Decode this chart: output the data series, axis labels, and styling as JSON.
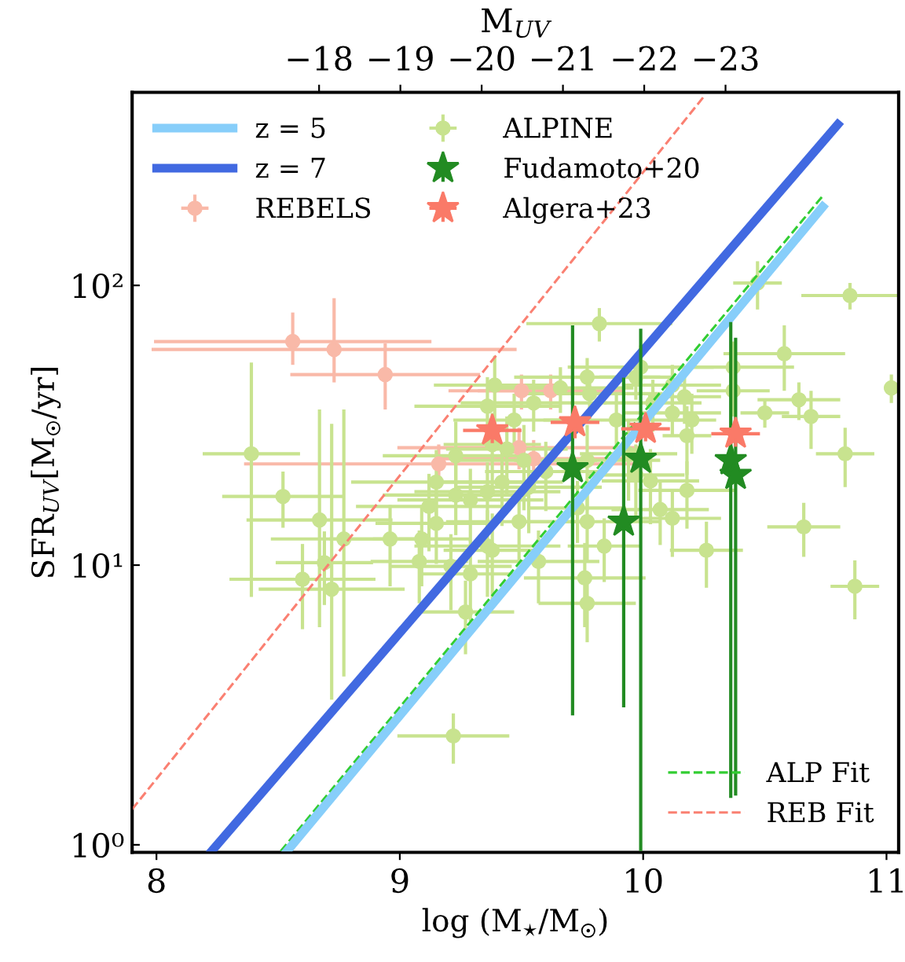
{
  "chart_data": {
    "type": "scatter",
    "xlabel": "log (M$_{⋆}$/M$_{☉}$)",
    "ylabel": "SFR$_{UV}$[M$_{☉}$/yr]",
    "x2label": "M$_{UV}$",
    "xlim": [
      7.9,
      11.05
    ],
    "xticks": [
      8,
      9,
      10,
      11
    ],
    "ylim": [
      0.94,
      490
    ],
    "yticks": [
      {
        "value": 1,
        "label": "10⁰"
      },
      {
        "value": 10,
        "label": "10¹"
      },
      {
        "value": 100,
        "label": "10²"
      }
    ],
    "log": "y",
    "x2lim": [
      -15.7,
      -25.13
    ],
    "x2ticks": [
      {
        "value": -18,
        "label": "−18"
      },
      {
        "value": -19,
        "label": "−19"
      },
      {
        "value": -20,
        "label": "−20"
      },
      {
        "value": -21,
        "label": "−21"
      },
      {
        "value": -22,
        "label": "−22"
      },
      {
        "value": -23,
        "label": "−23"
      }
    ],
    "legend": "top left",
    "grid": false,
    "series": [
      {
        "name": "z = 5",
        "type": "line",
        "color": "#87cefa",
        "line_style": "solid",
        "marker": "none",
        "x": [
          8.537,
          10.738
        ],
        "values": [
          0.95,
          191
        ]
      },
      {
        "name": "z = 7",
        "type": "line",
        "color": "#4169e1",
        "line_style": "solid",
        "marker": "none",
        "x": [
          8.227,
          10.8
        ],
        "values": [
          0.95,
          376
        ]
      },
      {
        "name": "REBELS",
        "color": "#f9b9a8",
        "marker": "circle",
        "x": [
          8.56,
          8.73,
          8.94,
          9.5,
          9.62,
          9.49,
          9.16,
          9.55
        ],
        "values": [
          63,
          59,
          48,
          42,
          42,
          26.3,
          23,
          24
        ],
        "xerrors": [
          0.57,
          0.75,
          0.39,
          0.3,
          0.3,
          0.5,
          0.8,
          0.4
        ],
        "errors": [
          [
            52,
            80
          ],
          [
            45,
            90
          ],
          [
            36,
            62
          ],
          [
            36,
            48
          ],
          [
            36,
            48
          ],
          [
            22,
            31
          ],
          [
            19,
            27
          ],
          [
            20,
            28
          ]
        ]
      },
      {
        "name": "ALPINE",
        "color": "#c8e38f",
        "marker": "circle",
        "x": [
          10.47,
          10.85,
          9.82,
          10.58,
          11.02,
          9.99,
          10.37,
          9.77,
          9.97,
          10.12,
          9.39,
          9.66,
          9.78,
          10.17,
          10.37,
          10.64,
          10.5,
          10.69,
          9.36,
          10.2,
          10.12,
          10.04,
          9.55,
          9.47,
          9.89,
          10.18,
          10.83,
          8.39,
          9.23,
          9.38,
          9.44,
          9.51,
          9.6,
          9.77,
          9.97,
          10.03,
          10.18,
          9.94,
          9.42,
          9.36,
          9.53,
          9.15,
          8.52,
          8.67,
          8.77,
          8.96,
          9.09,
          9.15,
          9.23,
          9.29,
          9.12,
          9.49,
          9.73,
          9.77,
          9.84,
          10.07,
          10.12,
          9.36,
          9.38,
          9.21,
          9.08,
          9.29,
          9.57,
          9.76,
          9.77,
          9.27,
          10.26,
          10.66,
          10.87,
          8.6,
          8.72,
          8.69,
          9.22
        ],
        "values": [
          102,
          92,
          73,
          57,
          43,
          51,
          51,
          47,
          47,
          44,
          44,
          43,
          41,
          40,
          42,
          39,
          35,
          34,
          37,
          33,
          35,
          38,
          38,
          33,
          33,
          29,
          25,
          25,
          24.6,
          27,
          26,
          23.7,
          21.6,
          23.7,
          21,
          20,
          18.5,
          25,
          19.8,
          18.3,
          19,
          19.8,
          17.6,
          14.5,
          12.4,
          12.4,
          12.4,
          14.1,
          17.8,
          17.1,
          16.2,
          14.3,
          16,
          14.3,
          11.7,
          15.8,
          14.7,
          11.7,
          11.3,
          9.9,
          10.3,
          9.3,
          10.3,
          9,
          7.3,
          6.8,
          11.3,
          13.7,
          8.4,
          8.9,
          8.2,
          10.2,
          2.45
        ],
        "xerrors": [
          0.1,
          0.2,
          0.3,
          0.25,
          0.03,
          0.3,
          0.25,
          0.3,
          0.15,
          0.2,
          0.25,
          0.3,
          0.3,
          0.15,
          0.15,
          0.17,
          0.1,
          0.12,
          0.3,
          0.1,
          0.2,
          0.2,
          0.3,
          0.25,
          0.3,
          0.1,
          0.12,
          0.2,
          0.3,
          0.2,
          0.25,
          0.3,
          0.25,
          0.3,
          0.2,
          0.2,
          0.2,
          0.2,
          0.25,
          0.3,
          0.3,
          0.35,
          0.25,
          0.3,
          0.3,
          0.25,
          0.2,
          0.25,
          0.3,
          0.3,
          0.3,
          0.3,
          0.2,
          0.3,
          0.15,
          0.2,
          0.2,
          0.3,
          0.2,
          0.25,
          0.2,
          0.2,
          0.25,
          0.25,
          0.2,
          0.2,
          0.15,
          0.15,
          0.1,
          0.3,
          0.3,
          0.2,
          0.23
        ],
        "errors": [
          20,
          10,
          10,
          15,
          5,
          10,
          12,
          8,
          8,
          8,
          12,
          8,
          8,
          8,
          8,
          6,
          4,
          8,
          10,
          8,
          6,
          8,
          8,
          8,
          8,
          8,
          6,
          [
            7.7,
            53
          ],
          8,
          8,
          8,
          8,
          6,
          8,
          6,
          6,
          5,
          8,
          6,
          5,
          6,
          6,
          4,
          [
            6,
            36
          ],
          [
            4,
            36
          ],
          4,
          4,
          4,
          5,
          5,
          5,
          4,
          4,
          4,
          3,
          4,
          4,
          4,
          4,
          3,
          3,
          3,
          3,
          3,
          2,
          2,
          3,
          3,
          2,
          3,
          [
            3.3,
            32
          ],
          3,
          0.5
        ]
      },
      {
        "name": "Fudamoto+20",
        "color": "#228b22",
        "marker": "star",
        "x": [
          9.71,
          9.92,
          9.99,
          10.36,
          10.38
        ],
        "values": [
          22.2,
          14.3,
          24,
          23.7,
          21
        ],
        "errors": [
          [
            2.9,
            72
          ],
          [
            3.1,
            46.8
          ],
          [
            0.95,
            70
          ],
          [
            1.47,
            74
          ],
          [
            1.5,
            65
          ]
        ]
      },
      {
        "name": "Algera+23",
        "color": "#fa7a68",
        "marker": "star",
        "x": [
          9.38,
          9.72,
          10.01,
          10.38
        ],
        "values": [
          30.3,
          32.4,
          30.7,
          29.5
        ],
        "xerrors": [
          0.12,
          0.1,
          0.1,
          0.1
        ],
        "errors": [
          3,
          4,
          3,
          3
        ]
      },
      {
        "name": "ALP Fit",
        "type": "line",
        "color": "#32cd32",
        "line_style": "dashed",
        "marker": "none",
        "x": [
          8.511,
          10.738
        ],
        "values": [
          0.95,
          209
        ]
      },
      {
        "name": "REB Fit",
        "type": "line",
        "color": "#fa8072",
        "line_style": "dashed",
        "marker": "none",
        "x": [
          7.9,
          10.25
        ],
        "values": [
          1.34,
          474
        ]
      }
    ]
  }
}
